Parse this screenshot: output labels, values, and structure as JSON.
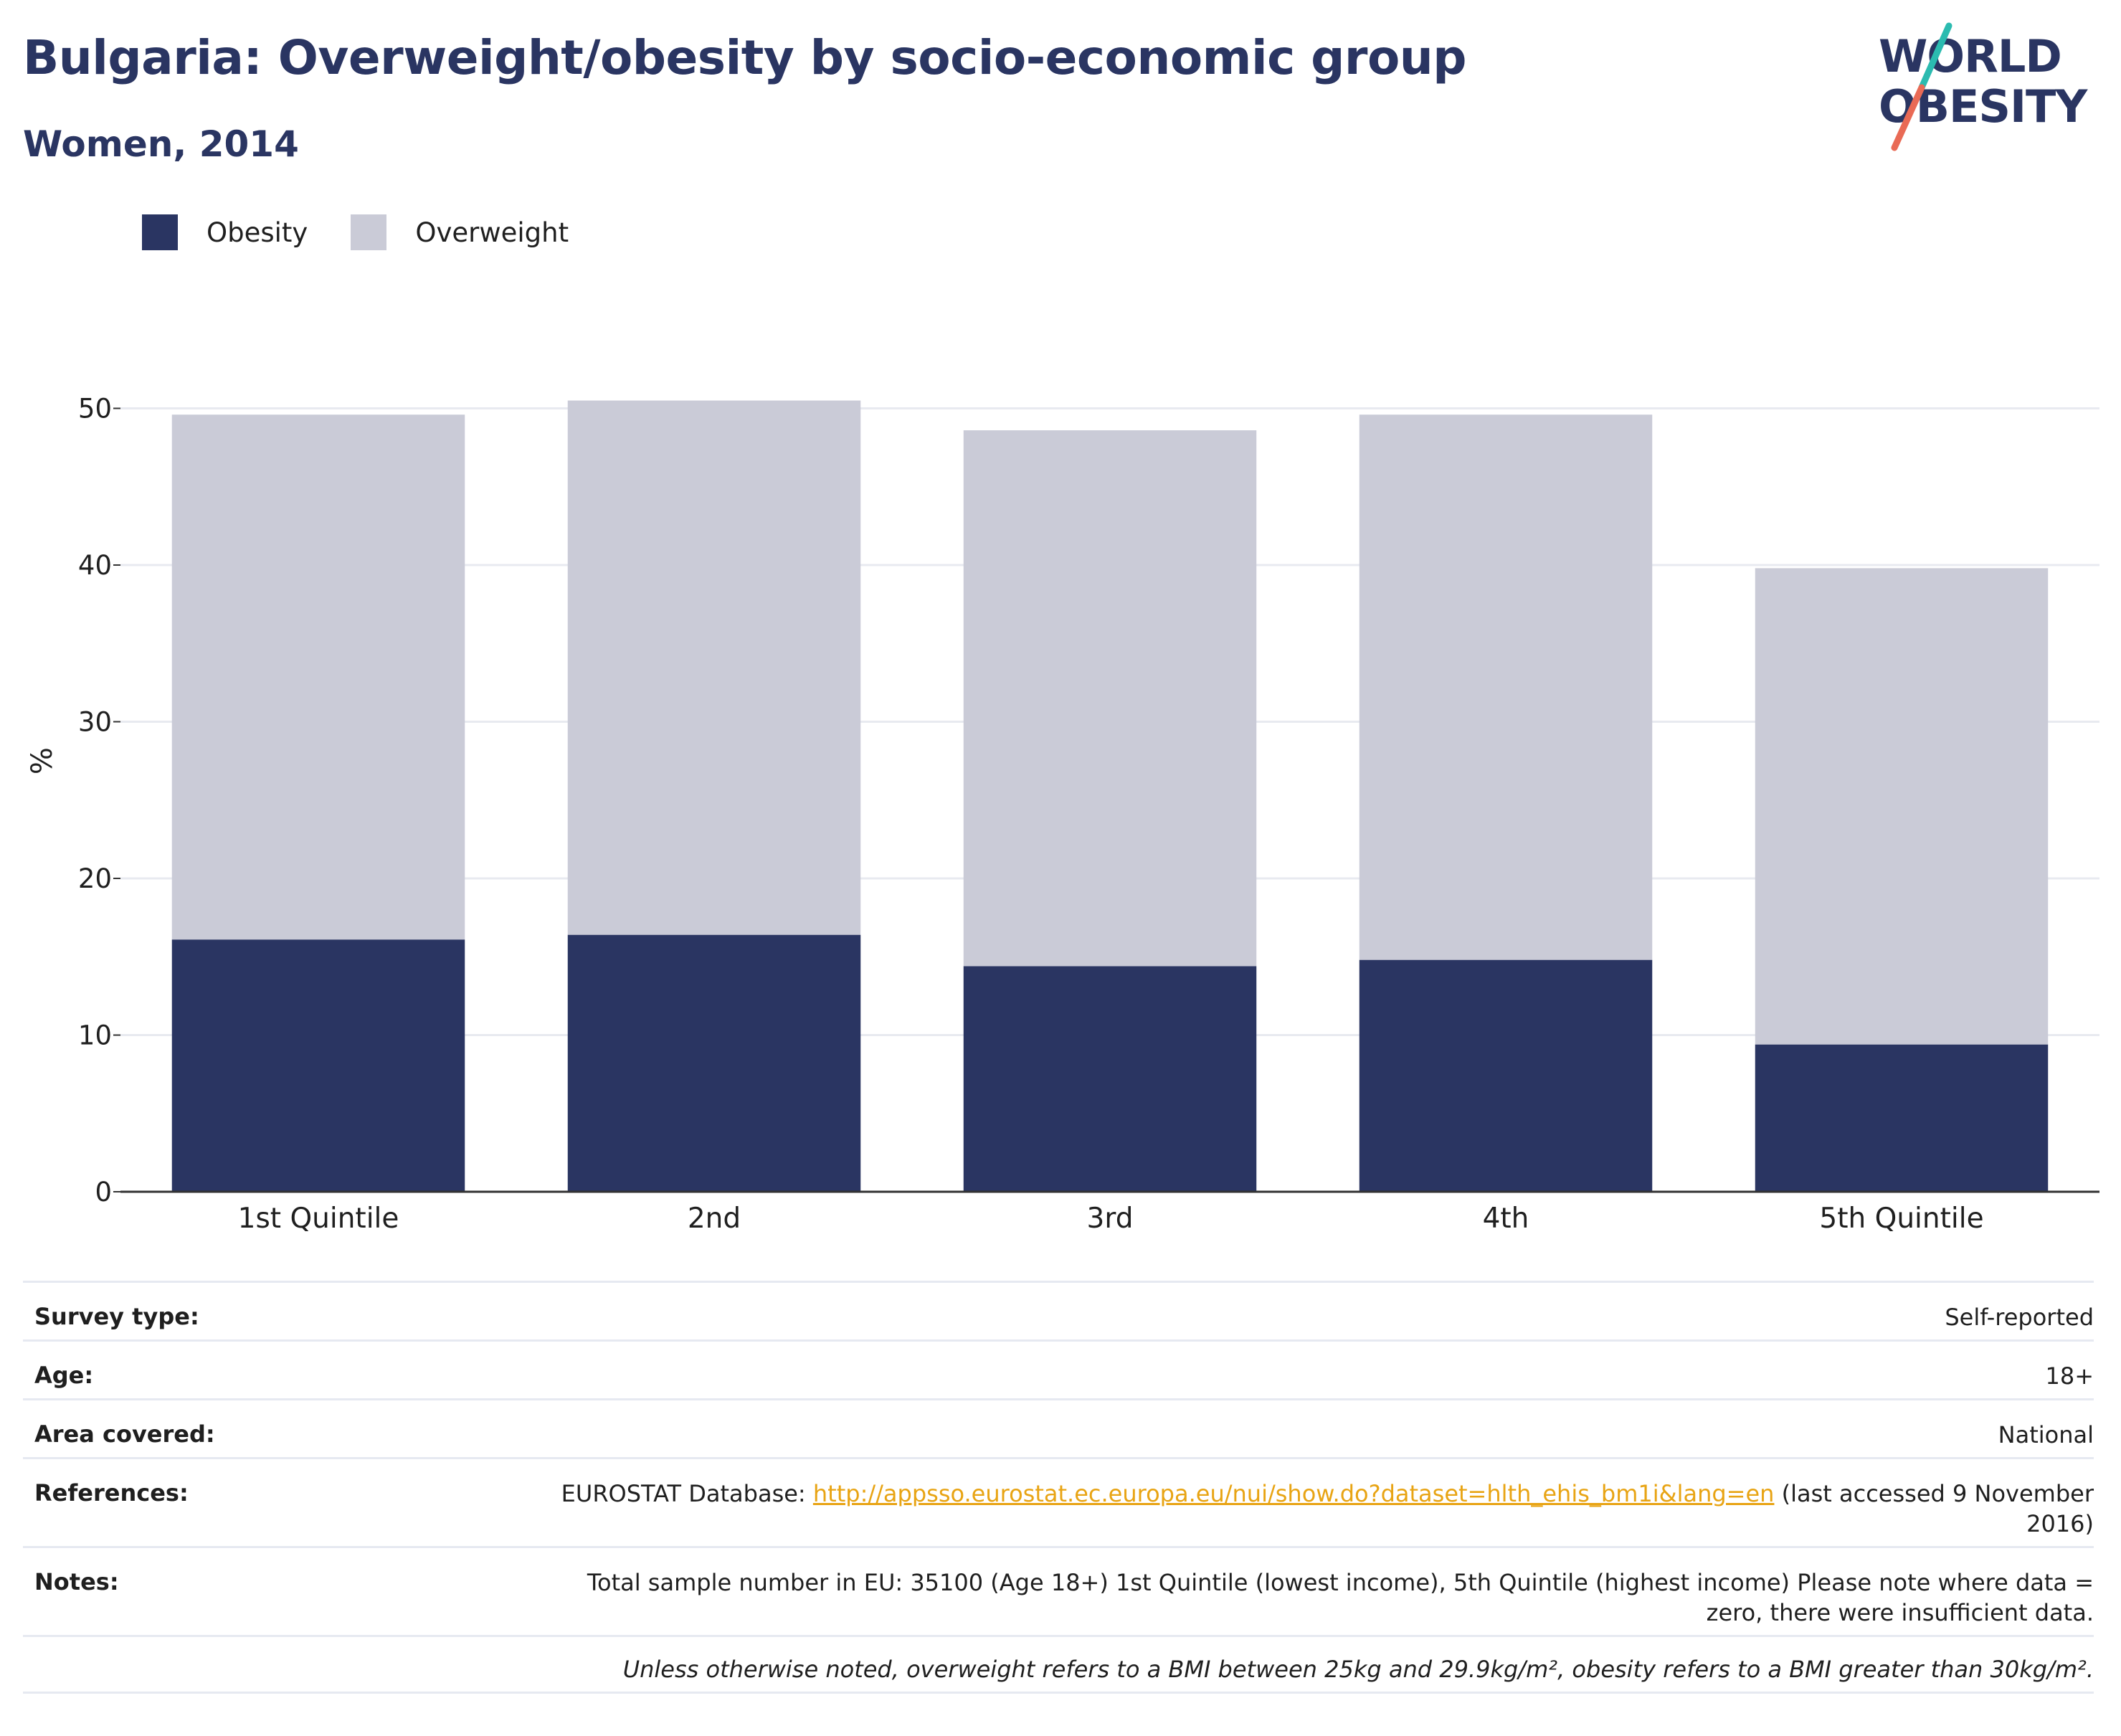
{
  "header": {
    "title": "Bulgaria: Overweight/obesity by socio-economic group",
    "subtitle": "Women, 2014"
  },
  "logo": {
    "line1": "WORLD",
    "line2": "OBESITY",
    "colors": {
      "text": "#2a3562",
      "slash_top": "#2bbbb0",
      "slash_bottom": "#e96a55"
    }
  },
  "legend": [
    {
      "label": "Obesity",
      "color": "#2a3562"
    },
    {
      "label": "Overweight",
      "color": "#cacbd7"
    }
  ],
  "chart_data": {
    "type": "bar",
    "stacked": true,
    "categories": [
      "1st Quintile",
      "2nd",
      "3rd",
      "4th",
      "5th Quintile"
    ],
    "series": [
      {
        "name": "Obesity",
        "values": [
          16.1,
          16.4,
          14.4,
          14.8,
          9.4
        ],
        "color": "#2a3562"
      },
      {
        "name": "Overweight",
        "values": [
          33.5,
          34.1,
          34.2,
          34.8,
          30.4
        ],
        "color": "#cacbd7"
      }
    ],
    "ylabel": "%",
    "xlabel": "",
    "ylim": [
      0,
      55
    ],
    "yticks": [
      0,
      10,
      20,
      30,
      40,
      50
    ],
    "grid": true,
    "legend_position": "top-left"
  },
  "info": {
    "rows": [
      {
        "label": "Survey type:",
        "value": "Self-reported"
      },
      {
        "label": "Age:",
        "value": "18+"
      },
      {
        "label": "Area covered:",
        "value": "National"
      },
      {
        "label": "References:",
        "value_prefix": "EUROSTAT Database: ",
        "link": "http://appsso.eurostat.ec.europa.eu/nui/show.do?dataset=hlth_ehis_bm1i&lang=en",
        "value_suffix": " (last accessed 9 November 2016)"
      },
      {
        "label": "Notes:",
        "value": "Total sample number in EU: 35100 (Age 18+) 1st Quintile (lowest income), 5th Quintile (highest income) Please note where data = zero, there were insufficient data."
      }
    ],
    "footnote": "Unless otherwise noted, overweight refers to a BMI between 25kg and 29.9kg/m², obesity refers to a BMI greater than 30kg/m²."
  }
}
